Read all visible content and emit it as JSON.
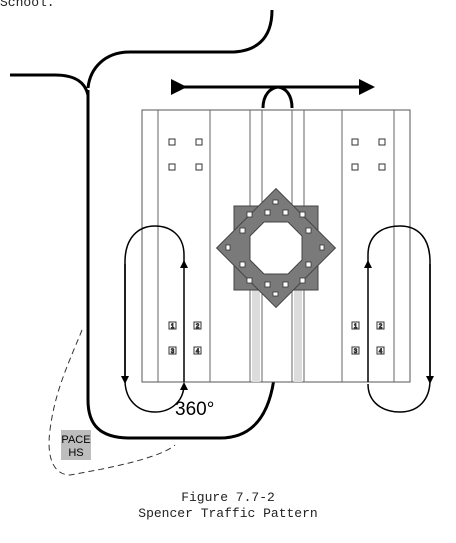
{
  "header_fragment": "School.",
  "diagram": {
    "rotation_label": "360°",
    "pace_label_line1": "PACE",
    "pace_label_line2": "HS",
    "lane_markers": {
      "left_rows": [
        [
          "1",
          "2"
        ],
        [
          "3",
          "4"
        ]
      ],
      "right_rows": [
        [
          "1",
          "2"
        ],
        [
          "3",
          "4"
        ]
      ]
    }
  },
  "caption": {
    "line1": "Figure 7.7-2",
    "line2": "Spencer Traffic Pattern"
  },
  "colors": {
    "line": "#000000",
    "apparatus_fill": "#7a7a7a",
    "pace_fill": "#bdbdbd",
    "lane_lines": "#555555"
  }
}
